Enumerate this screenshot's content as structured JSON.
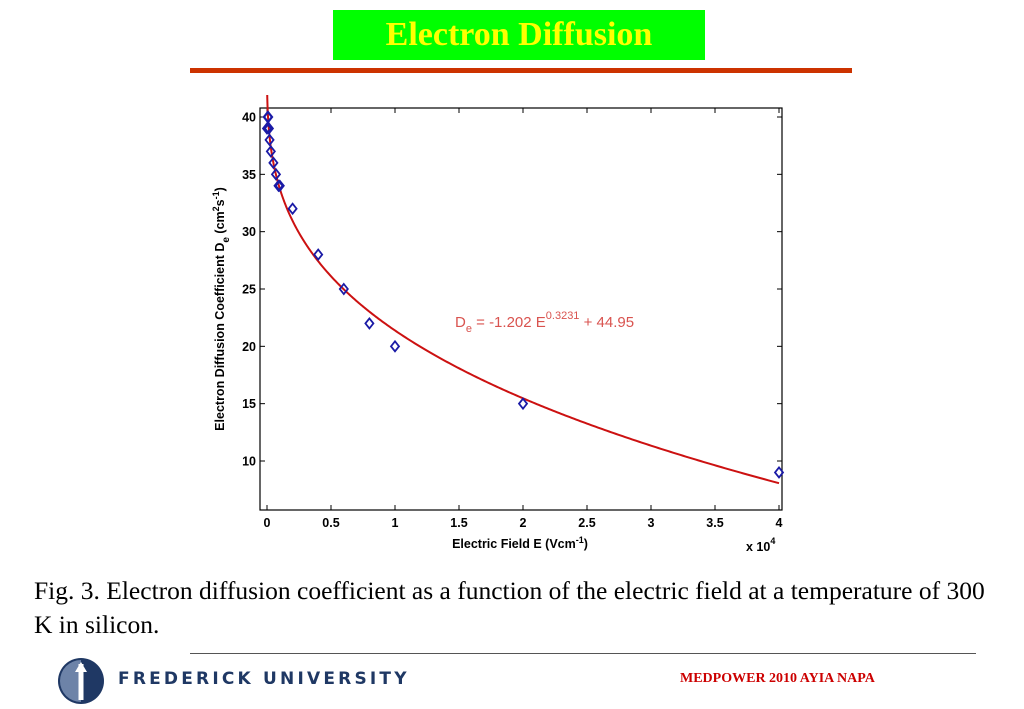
{
  "header": {
    "title": "Electron Diffusion"
  },
  "chart_data": {
    "type": "scatter",
    "xlabel_main": "Electric Field E (Vcm",
    "xlabel_sup": "-1",
    "xlabel_end": ")",
    "ylabel_main": "Electron Diffusion Coefficient D",
    "ylabel_sub": "e",
    "ylabel_unit_a": " (cm",
    "ylabel_sup_a": "2",
    "ylabel_unit_b": "s",
    "ylabel_sup_b": "-1",
    "ylabel_end": ")",
    "x_multiplier_base": "x 10",
    "x_multiplier_exp": "4",
    "xlim": [
      0,
      40000
    ],
    "ylim": [
      5,
      41
    ],
    "x_ticks": [
      0,
      5000,
      10000,
      15000,
      20000,
      25000,
      30000,
      35000,
      40000
    ],
    "x_tick_labels": [
      "0",
      "0.5",
      "1",
      "1.5",
      "2",
      "2.5",
      "3",
      "3.5",
      "4"
    ],
    "y_ticks": [
      10,
      15,
      20,
      25,
      30,
      35,
      40
    ],
    "y_tick_labels": [
      "10",
      "15",
      "20",
      "25",
      "30",
      "35",
      "40"
    ],
    "series": [
      {
        "marker": "diamond",
        "color": "#1a1aa6",
        "x": [
          0,
          50,
          100,
          150,
          200,
          300,
          500,
          700,
          900,
          1000,
          2000,
          4000,
          6000,
          8000,
          10000,
          20000,
          40000
        ],
        "y": [
          39,
          40,
          40,
          39,
          38,
          37,
          36,
          35,
          34,
          34,
          32,
          28,
          25,
          22,
          20,
          15,
          9
        ]
      }
    ],
    "fit": {
      "color": "#cc1111",
      "coef": -1.202,
      "exponent": 0.3231,
      "intercept": 44.95
    },
    "annotation": {
      "prefix": "D",
      "sub": "e",
      "mid": " = -1.202 E",
      "sup": "0.3231",
      "suffix": " + 44.95",
      "color": "#d9534f"
    }
  },
  "caption": "Fig. 3.  Electron diffusion coefficient as a function of the electric field at a temperature of 300 K in silicon.",
  "footer": {
    "university": "FREDERICK UNIVERSITY",
    "conference": "MEDPOWER 2010 AYIA NAPA"
  }
}
